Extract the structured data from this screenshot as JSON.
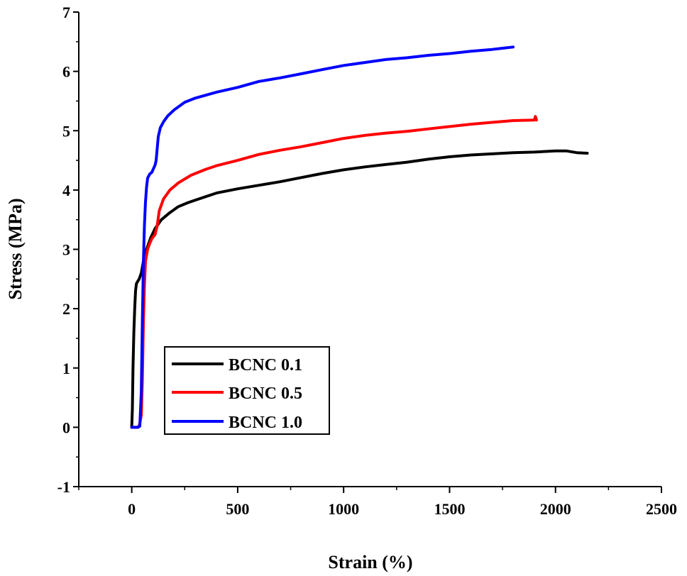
{
  "chart_data": {
    "type": "line",
    "title": "",
    "xlabel": "Strain (%)",
    "ylabel": "Stress (MPa)",
    "xlim": [
      -250,
      2500
    ],
    "ylim": [
      -1,
      7
    ],
    "xticks": [
      0,
      500,
      1000,
      1500,
      2000,
      2500
    ],
    "yticks": [
      -1,
      0,
      1,
      2,
      3,
      4,
      5,
      6,
      7
    ],
    "grid": false,
    "legend_position": "lower-left-center",
    "series": [
      {
        "name": "BCNC 0.1",
        "color": "#000000",
        "x": [
          0,
          3,
          6,
          10,
          14,
          18,
          22,
          28,
          35,
          45,
          55,
          70,
          90,
          110,
          140,
          180,
          220,
          260,
          300,
          400,
          500,
          600,
          700,
          800,
          900,
          1000,
          1100,
          1200,
          1300,
          1400,
          1500,
          1600,
          1700,
          1800,
          1900,
          2000,
          2050,
          2100,
          2150
        ],
        "y": [
          0,
          0.3,
          1.0,
          1.6,
          2.0,
          2.3,
          2.42,
          2.46,
          2.5,
          2.6,
          2.8,
          3.0,
          3.2,
          3.35,
          3.5,
          3.62,
          3.72,
          3.78,
          3.83,
          3.95,
          4.02,
          4.08,
          4.14,
          4.21,
          4.28,
          4.34,
          4.39,
          4.43,
          4.47,
          4.52,
          4.56,
          4.59,
          4.61,
          4.63,
          4.64,
          4.66,
          4.66,
          4.63,
          4.62
        ]
      },
      {
        "name": "BCNC 0.5",
        "color": "#ff0000",
        "x": [
          0,
          15,
          25,
          35,
          45,
          50,
          55,
          60,
          65,
          75,
          85,
          95,
          110,
          120,
          130,
          150,
          180,
          220,
          280,
          350,
          400,
          500,
          600,
          700,
          800,
          900,
          1000,
          1100,
          1200,
          1300,
          1400,
          1500,
          1600,
          1700,
          1800,
          1900,
          1905,
          1910
        ],
        "y": [
          0,
          0,
          0,
          0.02,
          0.2,
          0.8,
          1.8,
          2.4,
          2.8,
          3.0,
          3.1,
          3.18,
          3.25,
          3.4,
          3.65,
          3.85,
          4.0,
          4.12,
          4.25,
          4.35,
          4.41,
          4.5,
          4.6,
          4.67,
          4.73,
          4.8,
          4.87,
          4.92,
          4.96,
          4.99,
          5.03,
          5.07,
          5.11,
          5.14,
          5.17,
          5.18,
          5.24,
          5.18
        ]
      },
      {
        "name": "BCNC 1.0",
        "color": "#0000ff",
        "x": [
          0,
          10,
          20,
          30,
          38,
          45,
          50,
          55,
          60,
          65,
          70,
          75,
          85,
          95,
          105,
          110,
          115,
          120,
          125,
          135,
          150,
          170,
          200,
          250,
          300,
          400,
          500,
          600,
          700,
          800,
          900,
          1000,
          1100,
          1200,
          1300,
          1400,
          1500,
          1600,
          1700,
          1750,
          1800
        ],
        "y": [
          0,
          0,
          0,
          0,
          0.02,
          0.6,
          1.8,
          2.8,
          3.4,
          3.8,
          4.05,
          4.2,
          4.27,
          4.3,
          4.38,
          4.42,
          4.5,
          4.7,
          4.9,
          5.05,
          5.15,
          5.25,
          5.35,
          5.48,
          5.55,
          5.65,
          5.73,
          5.83,
          5.89,
          5.96,
          6.03,
          6.1,
          6.15,
          6.2,
          6.23,
          6.27,
          6.3,
          6.34,
          6.37,
          6.39,
          6.41
        ]
      }
    ]
  }
}
